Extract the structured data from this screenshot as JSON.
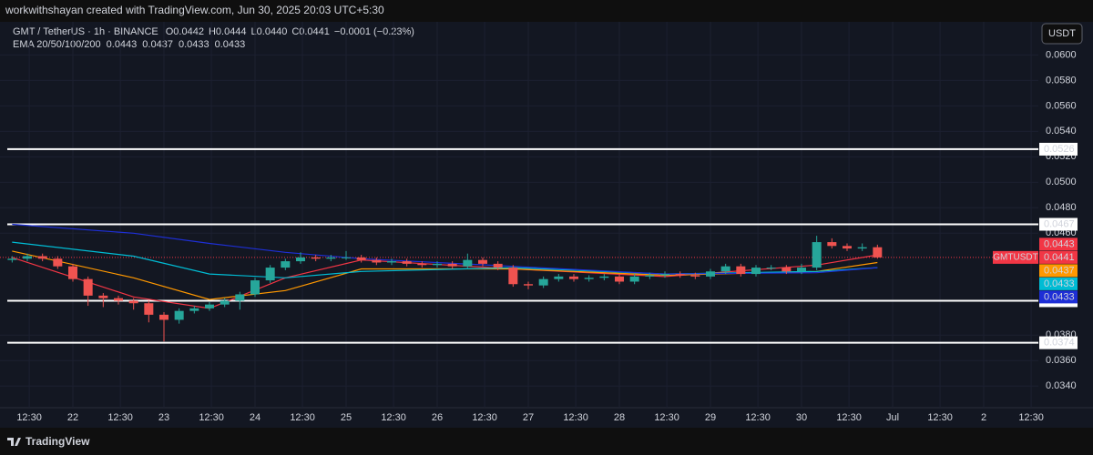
{
  "header": {
    "attribution": "workwithshayan created with TradingView.com, Jun 30, 2025 20:03 UTC+5:30",
    "symbol": "GMT / TetherUS · 1h · BINANCE",
    "ohlc": [
      "O0.0442",
      "H0.0444",
      "L0.0440",
      "C0.0441",
      "−0.0001 (−0.23%)"
    ],
    "ema_title": "EMA 20/50/100/200",
    "ema_values": [
      "0.0443",
      "0.0437",
      "0.0433",
      "0.0433"
    ]
  },
  "currency_button": "USDT",
  "footer": "TradingView",
  "chart_data": {
    "type": "candlestick",
    "x": [
      8,
      12,
      16,
      20,
      24,
      28,
      32,
      36,
      40,
      44,
      48,
      52,
      56,
      60,
      64,
      68,
      72,
      76,
      80,
      84,
      88,
      92,
      96,
      100,
      104,
      108,
      112,
      116,
      120,
      124,
      128,
      132,
      136,
      140,
      144,
      148,
      152,
      156,
      160,
      164,
      168,
      172,
      176,
      180,
      184,
      188,
      192,
      196,
      200,
      204,
      208,
      212,
      216,
      220,
      224,
      228,
      232,
      236
    ],
    "open": [
      0.0439,
      0.044,
      0.0442,
      0.044,
      0.0434,
      0.0424,
      0.0411,
      0.0409,
      0.0407,
      0.0405,
      0.0396,
      0.0392,
      0.0399,
      0.0401,
      0.0404,
      0.0407,
      0.0412,
      0.0423,
      0.0433,
      0.0438,
      0.0441,
      0.044,
      0.0441,
      0.0441,
      0.0439,
      0.0437,
      0.0438,
      0.0436,
      0.0435,
      0.0436,
      0.0434,
      0.0439,
      0.0436,
      0.0433,
      0.042,
      0.0419,
      0.0424,
      0.0426,
      0.0424,
      0.0425,
      0.0426,
      0.0422,
      0.0426,
      0.0427,
      0.0428,
      0.0427,
      0.0426,
      0.043,
      0.0434,
      0.0428,
      0.0433,
      0.0433,
      0.043,
      0.0433,
      0.0453,
      0.045,
      0.0448,
      0.0449
    ],
    "high": [
      0.0442,
      0.0444,
      0.0444,
      0.0442,
      0.0436,
      0.0426,
      0.0413,
      0.0411,
      0.0409,
      0.0407,
      0.0398,
      0.0401,
      0.0403,
      0.0406,
      0.0409,
      0.0414,
      0.0425,
      0.0435,
      0.044,
      0.0445,
      0.0443,
      0.0443,
      0.0446,
      0.0443,
      0.0441,
      0.044,
      0.044,
      0.0438,
      0.0438,
      0.0438,
      0.0444,
      0.0441,
      0.0438,
      0.0435,
      0.0422,
      0.0426,
      0.0428,
      0.0428,
      0.0427,
      0.0428,
      0.0428,
      0.0428,
      0.0429,
      0.043,
      0.043,
      0.0429,
      0.0432,
      0.0436,
      0.0436,
      0.0435,
      0.0435,
      0.0435,
      0.0436,
      0.0458,
      0.0456,
      0.0452,
      0.0452,
      0.0451
    ],
    "low": [
      0.0437,
      0.0438,
      0.0438,
      0.0432,
      0.0422,
      0.0403,
      0.0402,
      0.0404,
      0.04,
      0.039,
      0.0375,
      0.0389,
      0.0397,
      0.0399,
      0.0402,
      0.04,
      0.041,
      0.0421,
      0.0431,
      0.0436,
      0.0438,
      0.0438,
      0.0439,
      0.0437,
      0.0435,
      0.0435,
      0.0434,
      0.0433,
      0.0433,
      0.0432,
      0.0432,
      0.0434,
      0.0431,
      0.0418,
      0.0416,
      0.0417,
      0.0422,
      0.0422,
      0.0422,
      0.0423,
      0.042,
      0.042,
      0.0424,
      0.0425,
      0.0425,
      0.0424,
      0.0424,
      0.0428,
      0.0426,
      0.0426,
      0.0431,
      0.0428,
      0.0428,
      0.0431,
      0.0448,
      0.0446,
      0.0446,
      0.044
    ],
    "close": [
      0.044,
      0.0442,
      0.044,
      0.0434,
      0.0424,
      0.0411,
      0.0409,
      0.0407,
      0.0405,
      0.0396,
      0.0392,
      0.0399,
      0.0401,
      0.0404,
      0.0407,
      0.0412,
      0.0423,
      0.0433,
      0.0438,
      0.0441,
      0.044,
      0.0441,
      0.0441,
      0.0439,
      0.0437,
      0.0438,
      0.0436,
      0.0435,
      0.0436,
      0.0434,
      0.0439,
      0.0436,
      0.0433,
      0.042,
      0.0419,
      0.0424,
      0.0426,
      0.0424,
      0.0425,
      0.0426,
      0.0422,
      0.0426,
      0.0427,
      0.0428,
      0.0427,
      0.0426,
      0.043,
      0.0434,
      0.0428,
      0.0433,
      0.0433,
      0.043,
      0.0433,
      0.0453,
      0.045,
      0.0448,
      0.0449,
      0.0441
    ],
    "up_color": "#26a69a",
    "down_color": "#ef5350",
    "ema": {
      "x": [
        8,
        40,
        60,
        80,
        100,
        140,
        180,
        220,
        236
      ],
      "series": [
        {
          "color": "#f23645",
          "values": [
            0.0441,
            0.041,
            0.0401,
            0.0425,
            0.0439,
            0.0432,
            0.0426,
            0.0435,
            0.0443
          ],
          "value_label": "0.0443"
        },
        {
          "color": "#ff9800",
          "values": [
            0.0446,
            0.0425,
            0.0408,
            0.0415,
            0.0432,
            0.0432,
            0.0427,
            0.043,
            0.0437
          ],
          "value_label": "0.0437"
        },
        {
          "color": "#00bcd4",
          "values": [
            0.0453,
            0.0442,
            0.0428,
            0.0425,
            0.043,
            0.0433,
            0.0428,
            0.043,
            0.0433
          ],
          "value_label": "0.0433"
        },
        {
          "color": "#1e2fd6",
          "values": [
            0.0467,
            0.046,
            0.0452,
            0.0445,
            0.044,
            0.0434,
            0.0428,
            0.0429,
            0.0433
          ],
          "value_label": "0.0433"
        }
      ]
    },
    "levels": [
      {
        "value": 0.0526,
        "label": "0.0526"
      },
      {
        "value": 0.0467,
        "label": "0.0467"
      },
      {
        "value": 0.0407,
        "label": "0.0407"
      },
      {
        "value": 0.0374,
        "label": "0.0374"
      }
    ],
    "level_color": "#ffffff",
    "last_price": {
      "value": 0.0441,
      "label": "0.0441",
      "name": "GMTUSDT",
      "color": "#f23645"
    },
    "xlim": [
      4.8,
      278.4
    ],
    "xticks": [
      {
        "value": 12.5,
        "label": "12:30"
      },
      {
        "value": 24,
        "label": "22"
      },
      {
        "value": 36.5,
        "label": "12:30"
      },
      {
        "value": 48,
        "label": "23"
      },
      {
        "value": 60.5,
        "label": "12:30"
      },
      {
        "value": 72,
        "label": "24"
      },
      {
        "value": 84.5,
        "label": "12:30"
      },
      {
        "value": 96,
        "label": "25"
      },
      {
        "value": 108.5,
        "label": "12:30"
      },
      {
        "value": 120,
        "label": "26"
      },
      {
        "value": 132.5,
        "label": "12:30"
      },
      {
        "value": 144,
        "label": "27"
      },
      {
        "value": 156.5,
        "label": "12:30"
      },
      {
        "value": 168,
        "label": "28"
      },
      {
        "value": 180.5,
        "label": "12:30"
      },
      {
        "value": 192,
        "label": "29"
      },
      {
        "value": 204.5,
        "label": "12:30"
      },
      {
        "value": 216,
        "label": "30"
      },
      {
        "value": 228.5,
        "label": "12:30"
      },
      {
        "value": 240,
        "label": "Jul"
      },
      {
        "value": 252.5,
        "label": "12:30"
      },
      {
        "value": 264,
        "label": "2"
      },
      {
        "value": 276.5,
        "label": "12:30"
      }
    ],
    "ylim": [
      0.0323,
      0.0626
    ],
    "yticks": [
      {
        "value": 0.06,
        "label": "0.0600"
      },
      {
        "value": 0.058,
        "label": "0.0580"
      },
      {
        "value": 0.056,
        "label": "0.0560"
      },
      {
        "value": 0.054,
        "label": "0.0540"
      },
      {
        "value": 0.052,
        "label": "0.0520"
      },
      {
        "value": 0.05,
        "label": "0.0500"
      },
      {
        "value": 0.048,
        "label": "0.0480"
      },
      {
        "value": 0.046,
        "label": "0.0460"
      },
      {
        "value": 0.038,
        "label": "0.0380"
      },
      {
        "value": 0.036,
        "label": "0.0360"
      },
      {
        "value": 0.034,
        "label": "0.0340"
      }
    ],
    "grid": true
  }
}
